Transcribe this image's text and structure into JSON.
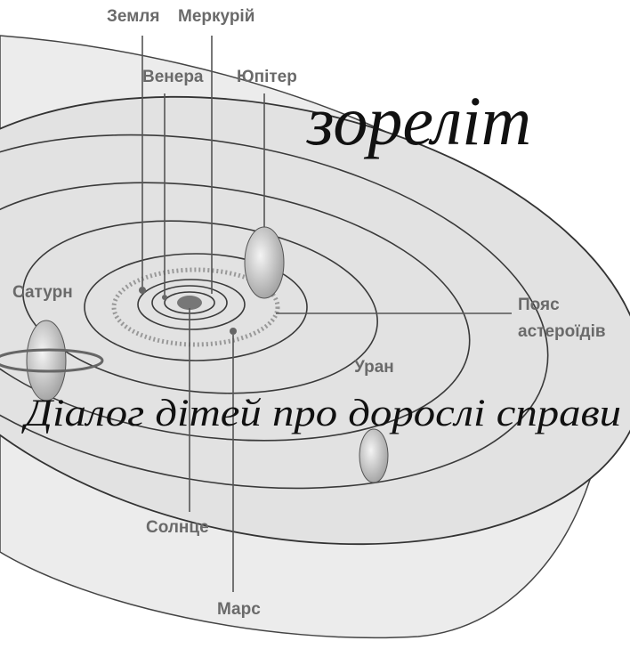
{
  "title": "зорелiт",
  "subtitle": "Діалог дітей про дорослі справи",
  "labels": {
    "earth": "Земля",
    "mercury": "Меркурій",
    "venus": "Венера",
    "jupiter": "Юпітер",
    "saturn": "Сатурн",
    "asteroid_belt": [
      "Пояс",
      "астероїдів"
    ],
    "uranus": "Уран",
    "sun": "Солнце",
    "mars": "Марс"
  }
}
